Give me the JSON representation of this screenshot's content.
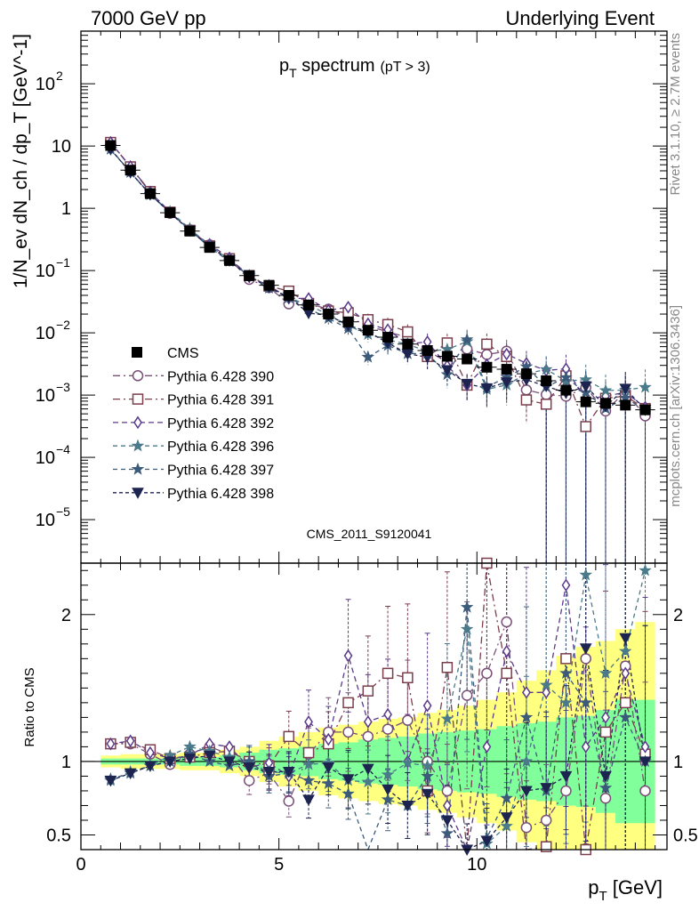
{
  "header": {
    "left": "7000 GeV pp",
    "right": "Underlying Event",
    "side_right_1": "Rivet 3.1.10, ≥ 2.7M events",
    "side_right_2": "mcplots.cern.ch [arXiv:1306.3436]"
  },
  "chart_data": {
    "type": "scatter",
    "title": "p_T spectrum",
    "title_main": "p",
    "title_sub": "T",
    "title_rest": " spectrum",
    "title_small": "(pT >  3)",
    "watermark": "CMS_2011_S9120041",
    "xlabel": "p_T [GeV]",
    "xlabel_main": "p",
    "xlabel_sub": "T",
    "xlabel_unit": " [GeV]",
    "ylabel": "1/N_ev dN_ch / dp_T [GeV^-1]",
    "ratio_ylabel": "Ratio to CMS",
    "xlim": [
      0,
      14.8
    ],
    "ylim": [
      2e-06,
      700
    ],
    "ratio_ylim": [
      0.4,
      2.35
    ],
    "log_y": true,
    "x_ticks": [
      {
        "v": 0,
        "label": "0"
      },
      {
        "v": 5,
        "label": "5"
      },
      {
        "v": 10,
        "label": "10"
      }
    ],
    "y_ticks": [
      {
        "v": 1e-05,
        "base": "10",
        "exp": "−5"
      },
      {
        "v": 0.0001,
        "base": "10",
        "exp": "−4"
      },
      {
        "v": 0.001,
        "base": "10",
        "exp": "−3"
      },
      {
        "v": 0.01,
        "base": "10",
        "exp": "−2"
      },
      {
        "v": 0.1,
        "base": "10",
        "exp": "−1"
      },
      {
        "v": 1,
        "base": "1",
        "exp": ""
      },
      {
        "v": 10,
        "base": "10",
        "exp": ""
      },
      {
        "v": 100,
        "base": "10",
        "exp": "2"
      }
    ],
    "ratio_ticks": [
      {
        "v": 0.5,
        "label": "0.5"
      },
      {
        "v": 1,
        "label": "1"
      },
      {
        "v": 2,
        "label": "2"
      }
    ],
    "x": [
      0.75,
      1.25,
      1.75,
      2.25,
      2.75,
      3.25,
      3.75,
      4.25,
      4.75,
      5.25,
      5.75,
      6.25,
      6.75,
      7.25,
      7.75,
      8.25,
      8.75,
      9.25,
      9.75,
      10.25,
      10.75,
      11.25,
      11.75,
      12.25,
      12.75,
      13.25,
      13.75,
      14.25
    ],
    "data": {
      "name": "CMS",
      "values": [
        10.2,
        4.1,
        1.72,
        0.85,
        0.43,
        0.235,
        0.145,
        0.083,
        0.058,
        0.04,
        0.028,
        0.02,
        0.015,
        0.011,
        0.0085,
        0.0066,
        0.0052,
        0.0042,
        0.0038,
        0.0028,
        0.0026,
        0.0022,
        0.0017,
        0.0012,
        0.00078,
        0.00074,
        0.00069,
        0.00058
      ],
      "band_inner": [
        0.02,
        0.02,
        0.02,
        0.02,
        0.03,
        0.03,
        0.04,
        0.06,
        0.08,
        0.09,
        0.1,
        0.12,
        0.13,
        0.15,
        0.16,
        0.17,
        0.19,
        0.2,
        0.21,
        0.22,
        0.24,
        0.26,
        0.27,
        0.3,
        0.31,
        0.35,
        0.42,
        0.42
      ],
      "band_outer": [
        0.04,
        0.05,
        0.05,
        0.05,
        0.06,
        0.06,
        0.08,
        0.1,
        0.14,
        0.17,
        0.2,
        0.23,
        0.25,
        0.27,
        0.29,
        0.3,
        0.33,
        0.35,
        0.38,
        0.42,
        0.47,
        0.55,
        0.62,
        0.72,
        0.78,
        0.82,
        0.9,
        0.95
      ]
    },
    "series": [
      {
        "name": "Pythia 6.428 390",
        "color": "#7a4f78",
        "marker": "circle",
        "dash": "8,4,2,4",
        "ratio": [
          1.12,
          1.12,
          1.05,
          0.98,
          1.05,
          1.1,
          1.05,
          0.87,
          0.92,
          0.73,
          1.05,
          1.2,
          1.2,
          1.17,
          1.22,
          1.28,
          1.0,
          0.8,
          1.45,
          1.6,
          1.95,
          0.55,
          0.6,
          0.8,
          1.7,
          0.75,
          1.65,
          0.8
        ]
      },
      {
        "name": "Pythia 6.428 391",
        "color": "#7a3e4c",
        "marker": "square",
        "dash": "8,4,2,4",
        "ratio": [
          1.12,
          1.13,
          1.08,
          1.02,
          1.03,
          1.06,
          1.07,
          1.0,
          0.97,
          1.17,
          1.06,
          1.12,
          1.4,
          1.48,
          1.6,
          1.57,
          0.8,
          1.64,
          0.38,
          2.35,
          1.6,
          0.38,
          0.42,
          1.7,
          0.4,
          1.2,
          1.4,
          1.05
        ]
      },
      {
        "name": "Pythia 6.428 392",
        "color": "#5b3a8a",
        "marker": "diamond",
        "dash": "6,4",
        "ratio": [
          1.12,
          1.14,
          1.06,
          1.02,
          1.04,
          1.12,
          1.1,
          0.96,
          0.99,
          0.9,
          1.27,
          1.15,
          1.72,
          1.27,
          1.32,
          1.0,
          1.38,
          0.7,
          0.38,
          1.1,
          1.75,
          1.47,
          1.47,
          2.2,
          1.1,
          1.3,
          1.6,
          1.1
        ]
      },
      {
        "name": "Pythia 6.428 396",
        "color": "#4b7a8a",
        "marker": "star",
        "dash": "5,4",
        "ratio": [
          0.87,
          0.93,
          0.97,
          1.04,
          1.1,
          1.07,
          1.03,
          0.99,
          0.93,
          0.92,
          0.98,
          0.99,
          0.87,
          0.86,
          0.91,
          0.99,
          0.97,
          1.29,
          1.9,
          0.44,
          0.56,
          1.0,
          1.52,
          1.4,
          2.27,
          1.6,
          1.75,
          2.3
        ]
      },
      {
        "name": "Pythia 6.428 397",
        "color": "#3c5a7a",
        "marker": "star",
        "dash": "5,4",
        "ratio": [
          0.88,
          0.92,
          0.97,
          1.0,
          1.05,
          1.0,
          0.97,
          1.0,
          0.9,
          0.92,
          0.87,
          0.85,
          0.78,
          0.37,
          0.74,
          0.7,
          0.9,
          0.51,
          2.05,
          0.48,
          0.75,
          1.3,
          0.8,
          1.6,
          1.4,
          0.82,
          1.3,
          1.0
        ]
      },
      {
        "name": "Pythia 6.428 398",
        "color": "#1e2450",
        "marker": "triangle-down",
        "dash": "4,3",
        "ratio": [
          0.87,
          0.92,
          0.97,
          1.0,
          1.02,
          1.04,
          1.0,
          0.96,
          0.93,
          0.93,
          0.74,
          0.96,
          0.88,
          0.95,
          0.81,
          0.7,
          0.78,
          0.6,
          0.4,
          0.46,
          0.62,
          0.8,
          0.82,
          0.9,
          1.77,
          0.9,
          1.84,
          1.0
        ]
      }
    ]
  }
}
